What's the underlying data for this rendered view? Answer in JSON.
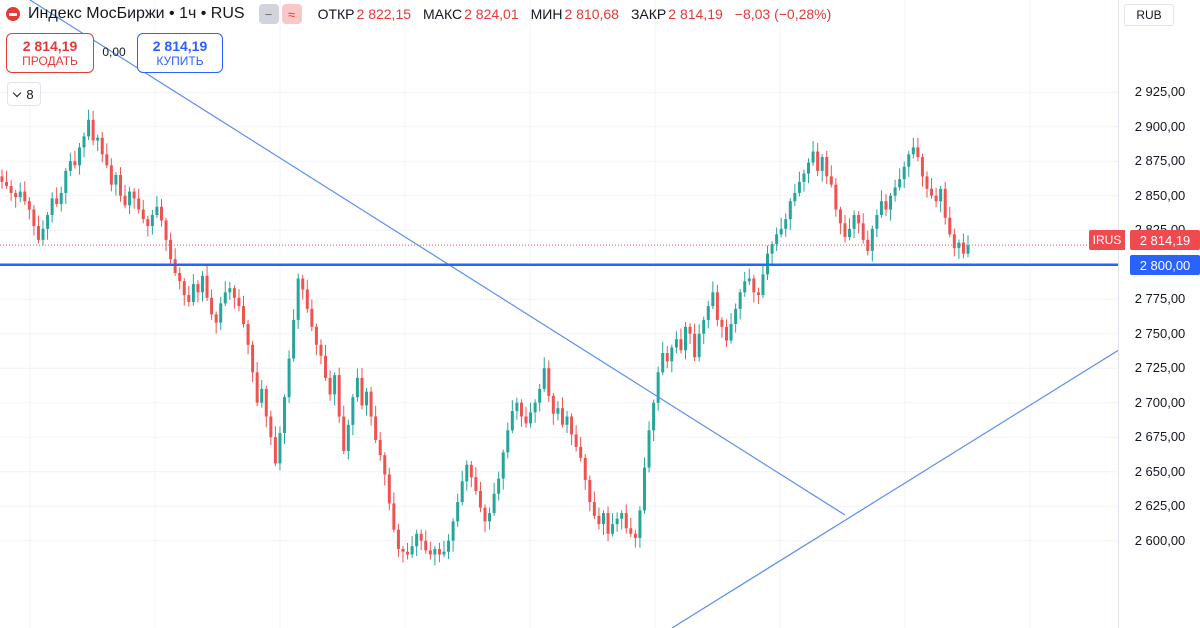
{
  "header": {
    "title": "Индекс МосБиржи • 1ч • RUS",
    "chip_minus": "−",
    "chip_approx": "≈",
    "open_label": "ОТКР",
    "open_value": "2 822,15",
    "high_label": "МАКС",
    "high_value": "2 824,01",
    "low_label": "МИН",
    "low_value": "2 810,68",
    "close_label": "ЗАКР",
    "close_value": "2 814,19",
    "change": "−8,03 (−0,28%)"
  },
  "trade": {
    "sell_price": "2 814,19",
    "sell_label": "ПРОДАТЬ",
    "buy_price": "2 814,19",
    "buy_label": "КУПИТЬ",
    "spread": "0,00"
  },
  "layers_count": "8",
  "currency": "RUB",
  "colors": {
    "up": "#26a69a",
    "down": "#ef5350",
    "level": "#2962ff",
    "trend": "#5b8def",
    "last": "#f0494e"
  },
  "price_tag": {
    "symbol": "IRUS",
    "value": "2 814,19"
  },
  "level_tag": {
    "value": "2 800,00"
  },
  "chart_data": {
    "type": "candlestick",
    "title": "Индекс МосБиржи • 1ч • RUS",
    "y_ticks": [
      "2 925,00",
      "2 900,00",
      "2 875,00",
      "2 850,00",
      "2 825,00",
      "2 800,00",
      "2 775,00",
      "2 750,00",
      "2 725,00",
      "2 700,00",
      "2 675,00",
      "2 650,00",
      "2 625,00",
      "2 600,00"
    ],
    "y_tick_values": [
      2925,
      2900,
      2875,
      2850,
      2825,
      2800,
      2775,
      2750,
      2725,
      2700,
      2675,
      2650,
      2625,
      2600
    ],
    "ylim": [
      2595,
      2940
    ],
    "last_price": 2814.19,
    "horizontal_level": 2800,
    "grid": true,
    "closes": [
      2860,
      2857,
      2852,
      2849,
      2853,
      2846,
      2840,
      2828,
      2818,
      2826,
      2836,
      2848,
      2844,
      2852,
      2868,
      2875,
      2872,
      2885,
      2893,
      2905,
      2890,
      2892,
      2880,
      2872,
      2858,
      2865,
      2850,
      2843,
      2853,
      2848,
      2840,
      2833,
      2828,
      2836,
      2842,
      2832,
      2818,
      2804,
      2794,
      2788,
      2778,
      2773,
      2786,
      2780,
      2792,
      2776,
      2764,
      2758,
      2772,
      2780,
      2783,
      2776,
      2770,
      2757,
      2742,
      2722,
      2700,
      2710,
      2690,
      2675,
      2656,
      2678,
      2704,
      2732,
      2760,
      2790,
      2782,
      2768,
      2755,
      2742,
      2734,
      2718,
      2706,
      2720,
      2690,
      2665,
      2684,
      2704,
      2718,
      2698,
      2708,
      2690,
      2673,
      2662,
      2648,
      2627,
      2608,
      2594,
      2592,
      2590,
      2596,
      2605,
      2600,
      2593,
      2590,
      2594,
      2590,
      2592,
      2600,
      2614,
      2628,
      2643,
      2655,
      2646,
      2636,
      2624,
      2614,
      2620,
      2634,
      2645,
      2664,
      2680,
      2694,
      2700,
      2690,
      2685,
      2693,
      2700,
      2710,
      2725,
      2705,
      2692,
      2696,
      2684,
      2690,
      2677,
      2668,
      2660,
      2644,
      2628,
      2618,
      2612,
      2620,
      2605,
      2612,
      2616,
      2620,
      2609,
      2605,
      2602,
      2622,
      2653,
      2680,
      2700,
      2722,
      2736,
      2730,
      2740,
      2746,
      2738,
      2755,
      2750,
      2733,
      2750,
      2760,
      2770,
      2780,
      2760,
      2755,
      2745,
      2757,
      2768,
      2780,
      2788,
      2790,
      2780,
      2778,
      2793,
      2808,
      2815,
      2822,
      2826,
      2833,
      2846,
      2852,
      2860,
      2866,
      2874,
      2882,
      2868,
      2878,
      2864,
      2858,
      2840,
      2830,
      2820,
      2826,
      2836,
      2830,
      2818,
      2810,
      2826,
      2836,
      2846,
      2840,
      2850,
      2856,
      2862,
      2871,
      2880,
      2885,
      2878,
      2864,
      2855,
      2850,
      2846,
      2855,
      2834,
      2822,
      2812,
      2816,
      2808,
      2814
    ]
  }
}
